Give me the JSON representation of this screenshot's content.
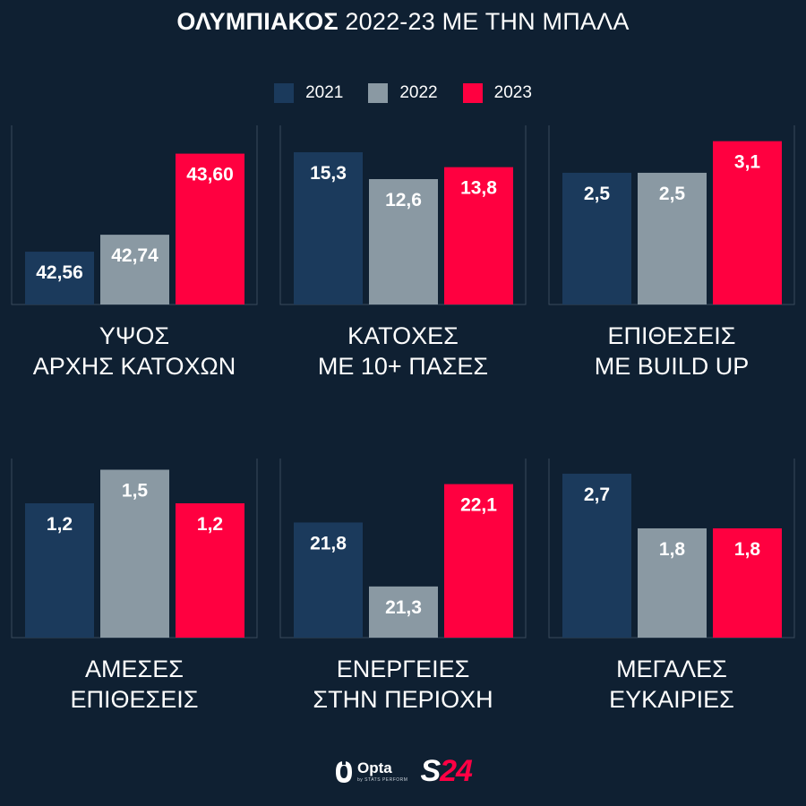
{
  "title": {
    "bold": "ΟΛΥΜΠΙΑΚΟΣ",
    "rest": "2022-23 ΜΕ ΤΗΝ ΜΠΑΛΑ"
  },
  "legend": [
    {
      "label": "2021",
      "color": "#1b3a5c"
    },
    {
      "label": "2022",
      "color": "#8a99a3"
    },
    {
      "label": "2023",
      "color": "#ff0040"
    }
  ],
  "footer": {
    "opta": "Opta",
    "opta_sub": "by STATS PERFORM",
    "brand_s": "S",
    "brand_num": "24"
  },
  "chart_data": [
    {
      "type": "bar",
      "title": "ΥΨΟΣ\nΑΡΧΗΣ ΚΑΤΟΧΩΝ",
      "categories": [
        "2021",
        "2022",
        "2023"
      ],
      "values": [
        42.56,
        42.74,
        43.6
      ],
      "labels": [
        "42,56",
        "42,74",
        "43,60"
      ],
      "ylim": [
        42.0,
        43.9
      ]
    },
    {
      "type": "bar",
      "title": "ΚΑΤΟΧΕΣ\nΜΕ 10+ ΠΑΣΕΣ",
      "categories": [
        "2021",
        "2022",
        "2023"
      ],
      "values": [
        15.3,
        12.6,
        13.8
      ],
      "labels": [
        "15,3",
        "12,6",
        "13,8"
      ],
      "ylim": [
        0,
        18.0
      ]
    },
    {
      "type": "bar",
      "title": "ΕΠΙΘΕΣΕΙΣ\nΜΕ BUILD UP",
      "categories": [
        "2021",
        "2022",
        "2023"
      ],
      "values": [
        2.5,
        2.5,
        3.1
      ],
      "labels": [
        "2,5",
        "2,5",
        "3,1"
      ],
      "ylim": [
        0,
        3.4
      ]
    },
    {
      "type": "bar",
      "title": "ΑΜΕΣΕΣ\nΕΠΙΘΕΣΕΙΣ",
      "categories": [
        "2021",
        "2022",
        "2023"
      ],
      "values": [
        1.2,
        1.5,
        1.2
      ],
      "labels": [
        "1,2",
        "1,5",
        "1,2"
      ],
      "ylim": [
        0,
        1.6
      ]
    },
    {
      "type": "bar",
      "title": "ΕΝΕΡΓΕΙΕΣ\nΣΤΗΝ ΠΕΡΙΟΧΗ",
      "categories": [
        "2021",
        "2022",
        "2023"
      ],
      "values": [
        21.8,
        21.3,
        22.1
      ],
      "labels": [
        "21,8",
        "21,3",
        "22,1"
      ],
      "ylim": [
        20.9,
        22.3
      ]
    },
    {
      "type": "bar",
      "title": "ΜΕΓΑΛΕΣ\nΕΥΚΑΙΡΙΕΣ",
      "categories": [
        "2021",
        "2022",
        "2023"
      ],
      "values": [
        2.7,
        1.8,
        1.8
      ],
      "labels": [
        "2,7",
        "1,8",
        "1,8"
      ],
      "ylim": [
        0,
        2.95
      ]
    }
  ]
}
